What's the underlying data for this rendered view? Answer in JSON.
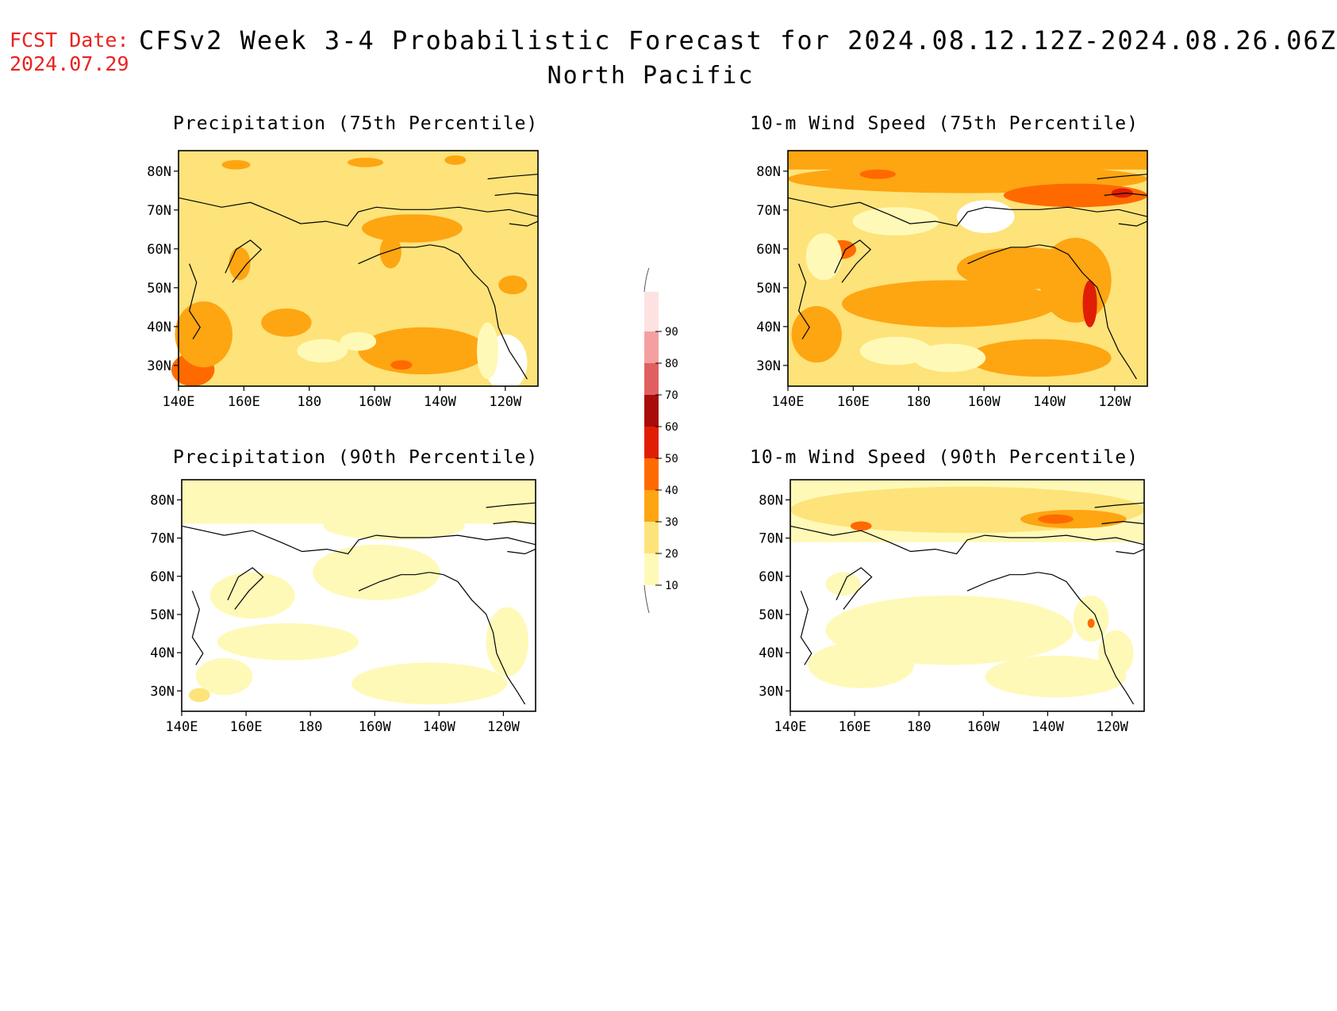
{
  "header": {
    "fcst_label": "FCST Date:",
    "fcst_date": "2024.07.29",
    "title": "CFSv2 Week 3-4 Probabilistic Forecast for 2024.08.12.12Z-2024.08.26.06Z",
    "subtitle": "North Pacific"
  },
  "axes": {
    "lon_ticks": [
      "140E",
      "160E",
      "180",
      "160W",
      "140W",
      "120W"
    ],
    "lat_ticks": [
      "80N",
      "70N",
      "60N",
      "50N",
      "40N",
      "30N"
    ]
  },
  "panels": [
    {
      "title": "Precipitation (75th Percentile)",
      "base_level": 20
    },
    {
      "title": "10-m Wind Speed (75th Percentile)",
      "base_level": 20
    },
    {
      "title": "Precipitation (90th Percentile)",
      "base_level": 0
    },
    {
      "title": "10-m Wind Speed (90th Percentile)",
      "base_level": 10
    }
  ],
  "colorbar": {
    "levels": [
      "10",
      "20",
      "30",
      "40",
      "50",
      "60",
      "70",
      "80",
      "90"
    ],
    "colors": [
      "#fff9b8",
      "#fde37a",
      "#fea512",
      "#ff6a00",
      "#e01e05",
      "#a80d0a",
      "#e06060",
      "#f4a0a0",
      "#fde2e2"
    ]
  }
}
